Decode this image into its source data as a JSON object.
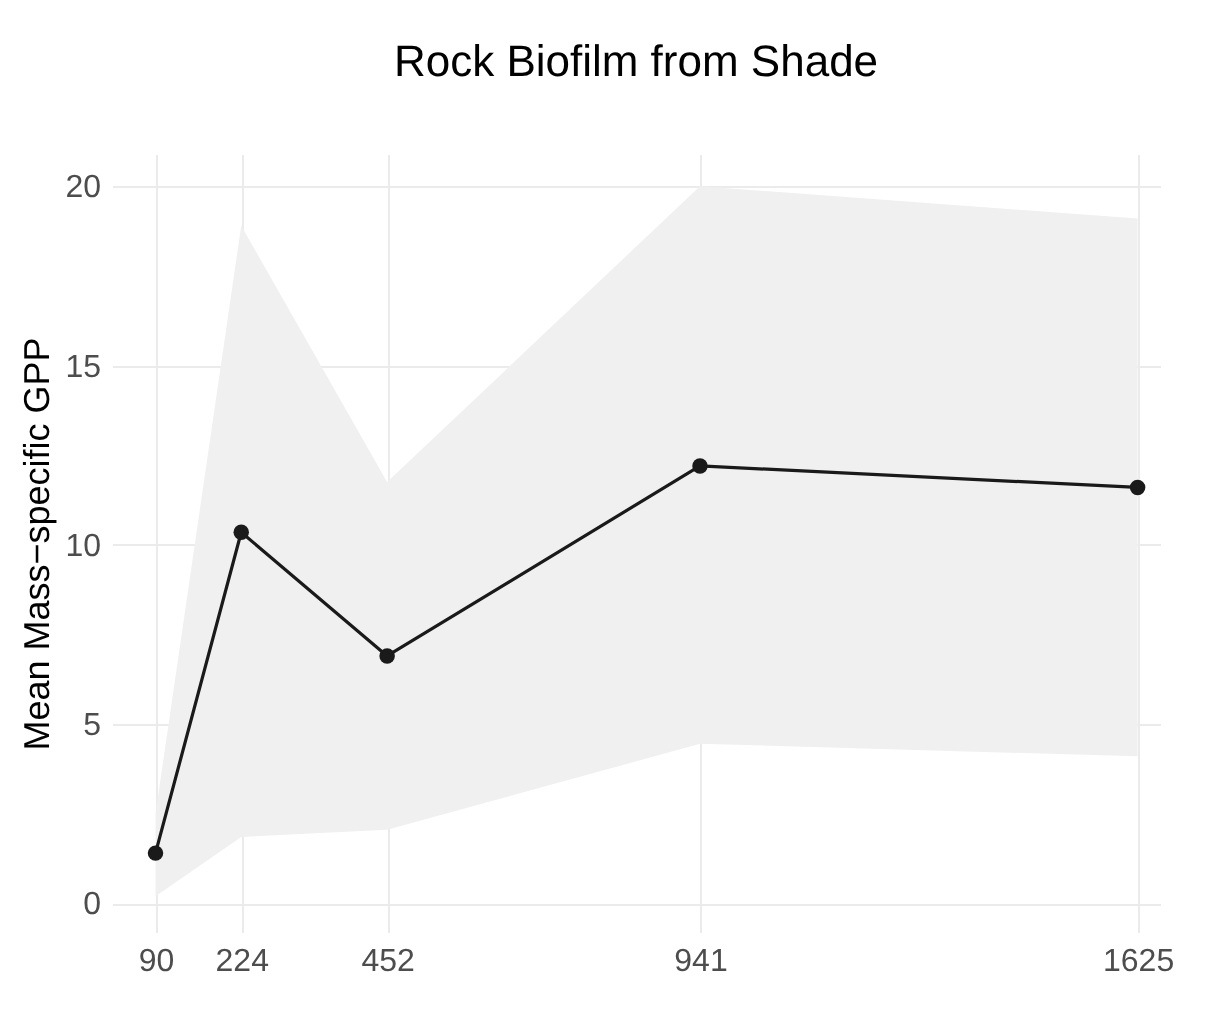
{
  "chart_data": {
    "type": "line",
    "title": "Rock Biofilm from Shade",
    "ylabel": "Mean Mass−specific GPP",
    "x": [
      90,
      224,
      452,
      941,
      1625
    ],
    "series": [
      {
        "color": "#1a1a1a",
        "values": [
          1.4,
          10.35,
          6.9,
          12.2,
          11.6
        ],
        "lower": [
          0.2,
          1.85,
          2.05,
          4.45,
          4.1
        ],
        "upper": [
          2.5,
          18.9,
          11.75,
          20.0,
          19.1
        ]
      }
    ],
    "xlim": [
      22,
      1660
    ],
    "xticks": [
      90,
      224,
      452,
      941,
      1625
    ],
    "ylim": [
      -0.8,
      20.9
    ],
    "yticks": [
      0,
      5,
      10,
      15,
      20
    ],
    "grid": true,
    "marker": "circle",
    "line_style": "solid"
  }
}
